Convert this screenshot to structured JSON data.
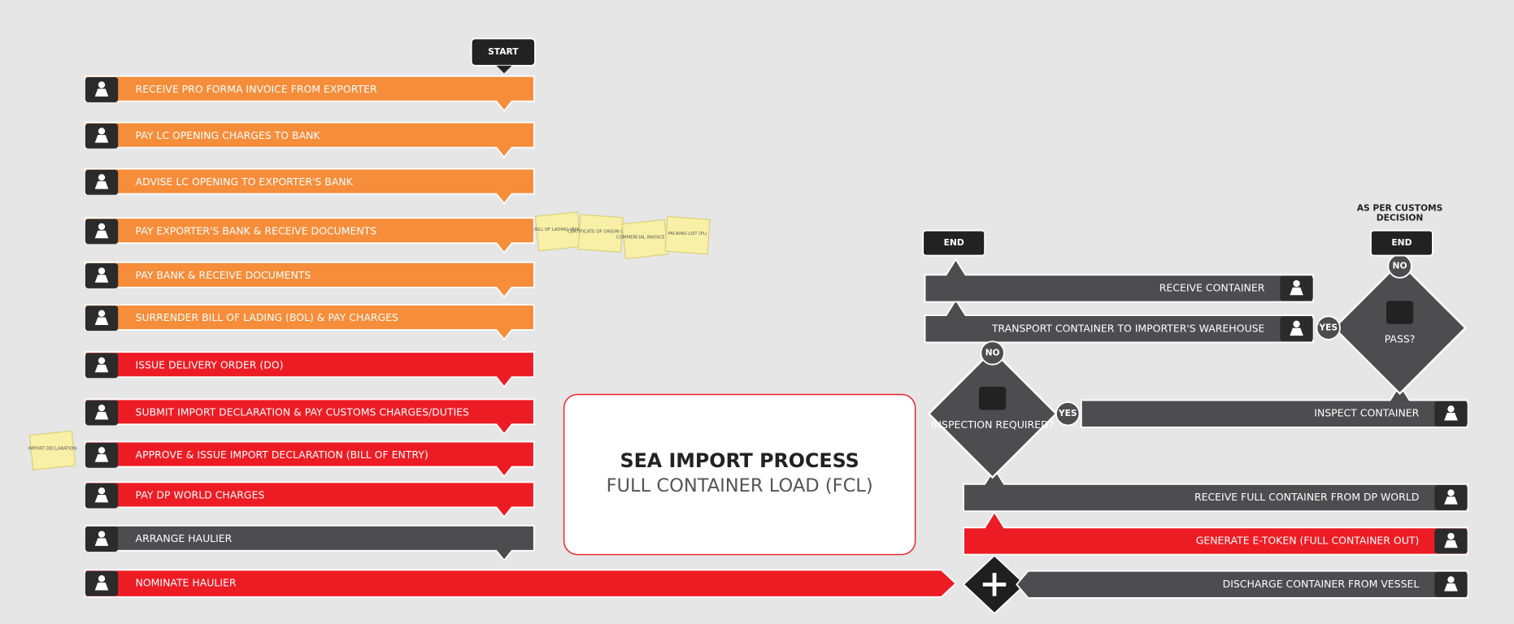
{
  "title": "SEA IMPORT PROCESS",
  "subtitle": "FULL CONTAINER LOAD (FCL)",
  "start": "START",
  "left_steps": [
    {
      "label": "RECEIVE PRO FORMA INVOICE FROM EXPORTER",
      "color": "#f68d3a"
    },
    {
      "label": "PAY LC OPENING CHARGES TO BANK",
      "color": "#f68d3a"
    },
    {
      "label": "ADVISE LC OPENING TO EXPORTER'S BANK",
      "color": "#f68d3a"
    },
    {
      "label": "PAY EXPORTER'S BANK & RECEIVE DOCUMENTS",
      "color": "#f68d3a"
    },
    {
      "label": "PAY BANK & RECEIVE  DOCUMENTS",
      "color": "#f68d3a"
    },
    {
      "label": "SURRENDER BILL OF LADING (BOL) & PAY CHARGES",
      "color": "#f68d3a"
    },
    {
      "label": "ISSUE DELIVERY ORDER (DO)",
      "color": "#ed1c24"
    },
    {
      "label": "SUBMIT IMPORT DECLARATION & PAY CUSTOMS CHARGES/DUTIES",
      "color": "#ed1c24"
    },
    {
      "label": "APPROVE & ISSUE IMPORT DECLARATION (BILL OF ENTRY)",
      "color": "#ed1c24"
    },
    {
      "label": "PAY DP WORLD CHARGES",
      "color": "#ed1c24"
    },
    {
      "label": "ARRANGE  HAULIER",
      "color": "#4d4d4f"
    },
    {
      "label": "NOMINATE HAULIER",
      "color": "#ed1c24"
    }
  ],
  "right_steps": [
    {
      "label": "DISCHARGE CONTAINER FROM VESSEL",
      "color": "#4d4d4f"
    },
    {
      "label": "GENERATE E-TOKEN (FULL CONTAINER OUT)",
      "color": "#ed1c24"
    },
    {
      "label": "RECEIVE FULL CONTAINER FROM DP WORLD",
      "color": "#4d4d4f"
    },
    {
      "label": "INSPECT CONTAINER",
      "color": "#4d4d4f"
    },
    {
      "label": "TRANSPORT CONTAINER TO IMPORTER'S WAREHOUSE",
      "color": "#4d4d4f"
    },
    {
      "label": "RECEIVE CONTAINER",
      "color": "#4d4d4f"
    }
  ],
  "decisions": [
    {
      "label": "INSPECTION REQUIRED?",
      "yes": "YES",
      "no": "NO"
    },
    {
      "label": "PASS?",
      "yes": "YES",
      "no": "NO"
    }
  ],
  "ends": [
    "END",
    "END"
  ],
  "end_note": "AS PER CUSTOMS DECISION",
  "documents": [
    "BILL OF LADING (BOL)",
    "CERTIFICATE OF ORIGIN (COO)",
    "COMMERCIAL INVOICE (CI)",
    "PACKING LIST (PL)",
    "IMPORT DECLARATION"
  ]
}
